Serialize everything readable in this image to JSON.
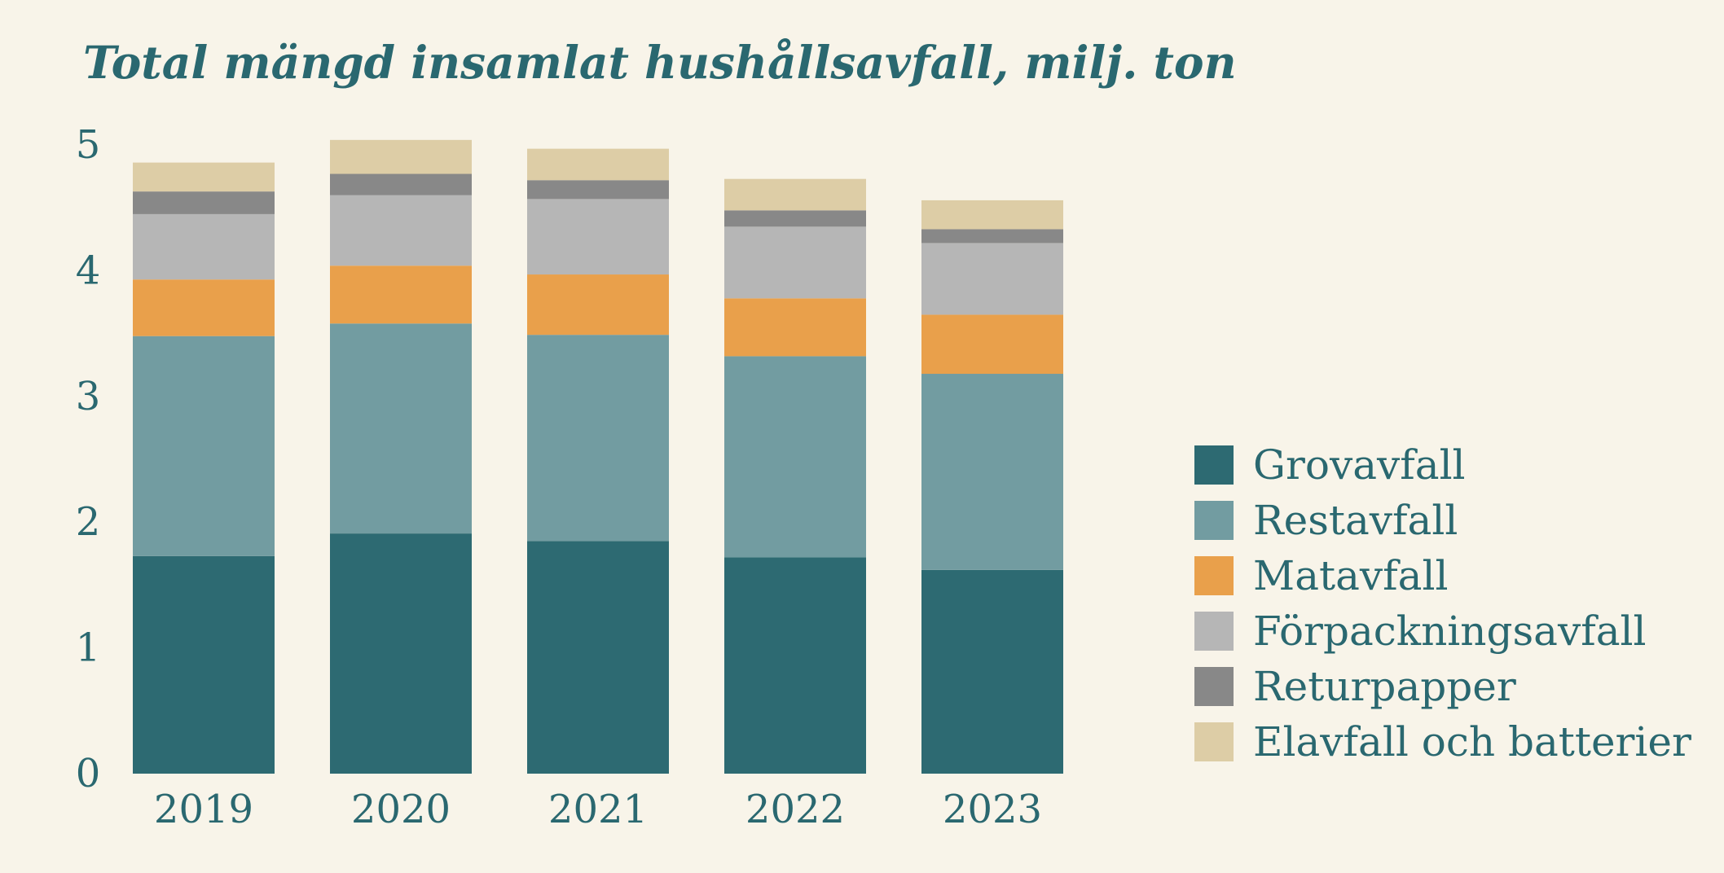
{
  "chart_data": {
    "type": "bar",
    "stacked": true,
    "title": "Total mängd insamlat hushållsavfall, milj. ton",
    "xlabel": "",
    "ylabel": "",
    "ylim": [
      0,
      5
    ],
    "yticks": [
      0,
      1,
      2,
      3,
      4,
      5
    ],
    "ytick_labels": [
      "0",
      "1",
      "2",
      "3",
      "4",
      "5"
    ],
    "grid": false,
    "legend_position": "right",
    "categories": [
      "2019",
      "2020",
      "2021",
      "2022",
      "2023"
    ],
    "series": [
      {
        "name": "Grovavfall",
        "color": "#2d6a72",
        "values": [
          1.73,
          1.91,
          1.85,
          1.72,
          1.62
        ]
      },
      {
        "name": "Restavfall",
        "color": "#729ca1",
        "values": [
          1.75,
          1.67,
          1.64,
          1.6,
          1.56
        ]
      },
      {
        "name": "Matavfall",
        "color": "#e9a04b",
        "values": [
          0.45,
          0.46,
          0.48,
          0.46,
          0.47
        ]
      },
      {
        "name": "Förpackningsavfall",
        "color": "#b6b6b6",
        "values": [
          0.52,
          0.56,
          0.6,
          0.57,
          0.57
        ]
      },
      {
        "name": "Returpapper",
        "color": "#888888",
        "values": [
          0.18,
          0.17,
          0.15,
          0.13,
          0.11
        ]
      },
      {
        "name": "Elavfall och batterier",
        "color": "#ddcda6",
        "values": [
          0.23,
          0.27,
          0.25,
          0.25,
          0.23
        ]
      }
    ]
  }
}
